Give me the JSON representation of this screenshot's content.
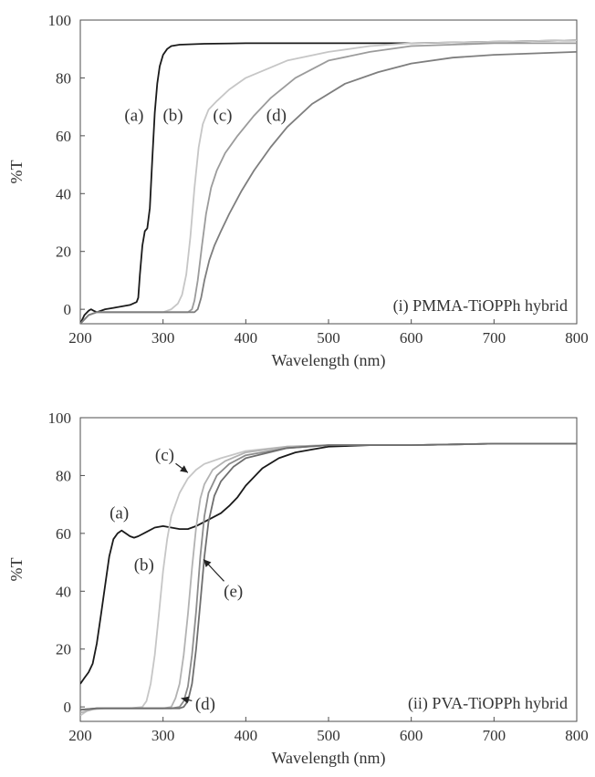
{
  "chart_data": [
    {
      "type": "line",
      "title": "",
      "panel_label": "(i) PMMA-TiOPPh hybrid",
      "xlabel": "Wavelength (nm)",
      "ylabel": "%T",
      "xlim": [
        200,
        800
      ],
      "ylim": [
        -5,
        100
      ],
      "xticks": [
        200,
        300,
        400,
        500,
        600,
        700,
        800
      ],
      "yticks": [
        0,
        20,
        40,
        60,
        80,
        100
      ],
      "xtick_labels": [
        "200",
        "300",
        "400",
        "500",
        "600",
        "700",
        "800"
      ],
      "ytick_labels": [
        "0",
        "20",
        "40",
        "60",
        "80",
        "100"
      ],
      "grid": false,
      "legend": "none",
      "series": [
        {
          "name": "(a)",
          "color": "#1a1a1a",
          "points": [
            [
              200,
              -5
            ],
            [
              205,
              -2
            ],
            [
              210,
              -0.5
            ],
            [
              213,
              0
            ],
            [
              216,
              -0.5
            ],
            [
              220,
              -1
            ],
            [
              230,
              0
            ],
            [
              240,
              0.5
            ],
            [
              250,
              1
            ],
            [
              260,
              1.5
            ],
            [
              268,
              2.5
            ],
            [
              270,
              4
            ],
            [
              272,
              12
            ],
            [
              275,
              22
            ],
            [
              278,
              27
            ],
            [
              281,
              28
            ],
            [
              284,
              35
            ],
            [
              287,
              52
            ],
            [
              290,
              68
            ],
            [
              293,
              78
            ],
            [
              296,
              84
            ],
            [
              300,
              88
            ],
            [
              305,
              90
            ],
            [
              310,
              91
            ],
            [
              320,
              91.5
            ],
            [
              350,
              91.8
            ],
            [
              400,
              92
            ],
            [
              500,
              92
            ],
            [
              600,
              92
            ],
            [
              700,
              92.5
            ],
            [
              800,
              93
            ]
          ]
        },
        {
          "name": "(b)",
          "color": "#c6c6c6",
          "points": [
            [
              200,
              -5
            ],
            [
              210,
              -2
            ],
            [
              220,
              -1
            ],
            [
              240,
              -1
            ],
            [
              260,
              -1
            ],
            [
              280,
              -1
            ],
            [
              300,
              -1
            ],
            [
              310,
              0
            ],
            [
              318,
              2
            ],
            [
              323,
              5
            ],
            [
              328,
              12
            ],
            [
              333,
              25
            ],
            [
              338,
              42
            ],
            [
              343,
              56
            ],
            [
              348,
              64
            ],
            [
              355,
              69
            ],
            [
              365,
              72
            ],
            [
              380,
              76
            ],
            [
              400,
              80
            ],
            [
              450,
              86
            ],
            [
              500,
              89
            ],
            [
              550,
              91
            ],
            [
              600,
              92
            ],
            [
              700,
              92.5
            ],
            [
              800,
              93
            ]
          ]
        },
        {
          "name": "(c)",
          "color": "#9b9b9b",
          "points": [
            [
              200,
              -5
            ],
            [
              210,
              -2
            ],
            [
              220,
              -1
            ],
            [
              260,
              -1
            ],
            [
              300,
              -1
            ],
            [
              320,
              -1
            ],
            [
              330,
              -1
            ],
            [
              335,
              0
            ],
            [
              338,
              3
            ],
            [
              342,
              10
            ],
            [
              347,
              22
            ],
            [
              352,
              33
            ],
            [
              358,
              42
            ],
            [
              365,
              48
            ],
            [
              375,
              54
            ],
            [
              390,
              60
            ],
            [
              410,
              67
            ],
            [
              430,
              73
            ],
            [
              460,
              80
            ],
            [
              500,
              86
            ],
            [
              550,
              89
            ],
            [
              600,
              91
            ],
            [
              700,
              92
            ],
            [
              800,
              92
            ]
          ]
        },
        {
          "name": "(d)",
          "color": "#7e7e7e",
          "points": [
            [
              200,
              -5
            ],
            [
              210,
              -2
            ],
            [
              220,
              -1
            ],
            [
              260,
              -1
            ],
            [
              300,
              -1
            ],
            [
              330,
              -1
            ],
            [
              338,
              -1
            ],
            [
              342,
              0
            ],
            [
              346,
              4
            ],
            [
              350,
              10
            ],
            [
              356,
              17
            ],
            [
              362,
              22
            ],
            [
              370,
              27
            ],
            [
              380,
              33
            ],
            [
              395,
              41
            ],
            [
              410,
              48
            ],
            [
              430,
              56
            ],
            [
              450,
              63
            ],
            [
              480,
              71
            ],
            [
              520,
              78
            ],
            [
              560,
              82
            ],
            [
              600,
              85
            ],
            [
              650,
              87
            ],
            [
              700,
              88
            ],
            [
              750,
              88.5
            ],
            [
              800,
              89
            ]
          ]
        }
      ],
      "annotations": [
        {
          "text": "(a)",
          "x": 265,
          "y": 67
        },
        {
          "text": "(b)",
          "x": 312,
          "y": 67
        },
        {
          "text": "(c)",
          "x": 372,
          "y": 67
        },
        {
          "text": "(d)",
          "x": 437,
          "y": 67
        }
      ]
    },
    {
      "type": "line",
      "title": "",
      "panel_label": "(ii) PVA-TiOPPh hybrid",
      "xlabel": "Wavelength (nm)",
      "ylabel": "%T",
      "xlim": [
        200,
        800
      ],
      "ylim": [
        -5,
        100
      ],
      "xticks": [
        200,
        300,
        400,
        500,
        600,
        700,
        800
      ],
      "yticks": [
        0,
        20,
        40,
        60,
        80,
        100
      ],
      "xtick_labels": [
        "200",
        "300",
        "400",
        "500",
        "600",
        "700",
        "800"
      ],
      "ytick_labels": [
        "0",
        "20",
        "40",
        "60",
        "80",
        "100"
      ],
      "grid": false,
      "legend": "none",
      "series": [
        {
          "name": "(a)",
          "color": "#1a1a1a",
          "points": [
            [
              200,
              8
            ],
            [
              205,
              10
            ],
            [
              210,
              12
            ],
            [
              215,
              15
            ],
            [
              220,
              22
            ],
            [
              225,
              32
            ],
            [
              230,
              42
            ],
            [
              235,
              52
            ],
            [
              240,
              58
            ],
            [
              245,
              60
            ],
            [
              250,
              61
            ],
            [
              255,
              60
            ],
            [
              260,
              59
            ],
            [
              265,
              58.5
            ],
            [
              270,
              59
            ],
            [
              280,
              60.5
            ],
            [
              290,
              62
            ],
            [
              300,
              62.5
            ],
            [
              310,
              62
            ],
            [
              320,
              61.5
            ],
            [
              330,
              61.5
            ],
            [
              340,
              62.5
            ],
            [
              350,
              64
            ],
            [
              360,
              65.5
            ],
            [
              370,
              67
            ],
            [
              380,
              69.5
            ],
            [
              390,
              72.5
            ],
            [
              400,
              76.5
            ],
            [
              420,
              82.5
            ],
            [
              440,
              86
            ],
            [
              460,
              88
            ],
            [
              480,
              89
            ],
            [
              500,
              90
            ],
            [
              550,
              90.5
            ],
            [
              600,
              90.5
            ],
            [
              700,
              91
            ],
            [
              800,
              91
            ]
          ]
        },
        {
          "name": "(b)",
          "color": "#c6c6c6",
          "points": [
            [
              200,
              -3
            ],
            [
              210,
              -1
            ],
            [
              230,
              -0.5
            ],
            [
              260,
              -0.5
            ],
            [
              275,
              0
            ],
            [
              280,
              2
            ],
            [
              285,
              8
            ],
            [
              290,
              18
            ],
            [
              295,
              32
            ],
            [
              300,
              47
            ],
            [
              305,
              58
            ],
            [
              310,
              66
            ],
            [
              320,
              74
            ],
            [
              330,
              79
            ],
            [
              340,
              82
            ],
            [
              350,
              84
            ],
            [
              370,
              86
            ],
            [
              400,
              88.5
            ],
            [
              450,
              90
            ],
            [
              500,
              90.5
            ],
            [
              600,
              90.5
            ],
            [
              700,
              91
            ],
            [
              800,
              91
            ]
          ]
        },
        {
          "name": "(c)",
          "color": "#b2b2b2",
          "points": [
            [
              200,
              -2
            ],
            [
              220,
              -0.5
            ],
            [
              260,
              -0.5
            ],
            [
              300,
              -0.5
            ],
            [
              310,
              0
            ],
            [
              315,
              3
            ],
            [
              320,
              8
            ],
            [
              325,
              18
            ],
            [
              330,
              32
            ],
            [
              335,
              48
            ],
            [
              340,
              62
            ],
            [
              345,
              72
            ],
            [
              350,
              77
            ],
            [
              360,
              82
            ],
            [
              375,
              85
            ],
            [
              400,
              88
            ],
            [
              450,
              90
            ],
            [
              500,
              90.5
            ],
            [
              600,
              90.5
            ],
            [
              700,
              91
            ],
            [
              800,
              91
            ]
          ]
        },
        {
          "name": "(d)",
          "color": "#8c8c8c",
          "points": [
            [
              200,
              -1
            ],
            [
              220,
              -0.5
            ],
            [
              280,
              -0.5
            ],
            [
              310,
              -0.5
            ],
            [
              320,
              0
            ],
            [
              325,
              2
            ],
            [
              330,
              7
            ],
            [
              335,
              18
            ],
            [
              340,
              33
            ],
            [
              345,
              52
            ],
            [
              350,
              66
            ],
            [
              355,
              74
            ],
            [
              365,
              80
            ],
            [
              380,
              84
            ],
            [
              400,
              87
            ],
            [
              450,
              89.5
            ],
            [
              500,
              90.5
            ],
            [
              600,
              90.5
            ],
            [
              700,
              91
            ],
            [
              800,
              91
            ]
          ]
        },
        {
          "name": "(e)",
          "color": "#6e6e6e",
          "points": [
            [
              200,
              -1
            ],
            [
              220,
              -0.5
            ],
            [
              280,
              -0.5
            ],
            [
              320,
              -0.5
            ],
            [
              325,
              0
            ],
            [
              330,
              2
            ],
            [
              335,
              8
            ],
            [
              340,
              20
            ],
            [
              345,
              36
            ],
            [
              350,
              52
            ],
            [
              355,
              64
            ],
            [
              362,
              73
            ],
            [
              370,
              78
            ],
            [
              385,
              83
            ],
            [
              400,
              86
            ],
            [
              450,
              89.5
            ],
            [
              500,
              90.5
            ],
            [
              600,
              90.5
            ],
            [
              700,
              91
            ],
            [
              800,
              91
            ]
          ]
        }
      ],
      "annotations": [
        {
          "text": "(a)",
          "x": 247,
          "y": 67,
          "arrow": false
        },
        {
          "text": "(b)",
          "x": 277,
          "y": 49,
          "arrow": false
        },
        {
          "text": "(c)",
          "x": 302,
          "y": 87,
          "arrow": true,
          "arrow_to": [
            330,
            81
          ]
        },
        {
          "text": "(d)",
          "x": 351,
          "y": 1,
          "arrow": true,
          "arrow_to": [
            322,
            3
          ]
        },
        {
          "text": "(e)",
          "x": 385,
          "y": 40,
          "arrow": true,
          "arrow_to": [
            349,
            51
          ]
        }
      ]
    }
  ]
}
